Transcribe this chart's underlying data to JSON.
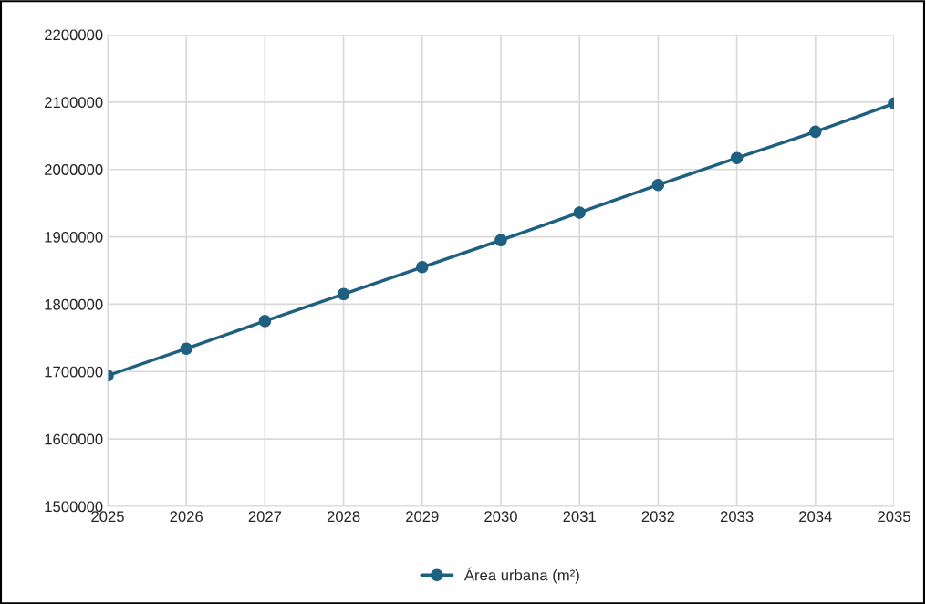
{
  "chart_data": {
    "type": "line",
    "x": [
      2025,
      2026,
      2027,
      2028,
      2029,
      2030,
      2031,
      2032,
      2033,
      2034,
      2035
    ],
    "series": [
      {
        "name": "Área urbana (m²)",
        "color": "#1f6080",
        "values": [
          1694000,
          1734000,
          1775000,
          1815000,
          1855000,
          1895000,
          1936000,
          1977000,
          2017000,
          2056000,
          2098000
        ]
      }
    ],
    "xlim": [
      2025,
      2035
    ],
    "xticks": [
      2025,
      2026,
      2027,
      2028,
      2029,
      2030,
      2031,
      2032,
      2033,
      2034,
      2035
    ],
    "ylim": [
      1500000,
      2200000
    ],
    "yticks": [
      1500000,
      1600000,
      1700000,
      1800000,
      1900000,
      2000000,
      2100000,
      2200000
    ],
    "grid": true,
    "legend": "bottom",
    "marker": "circle",
    "line_style": "solid"
  }
}
